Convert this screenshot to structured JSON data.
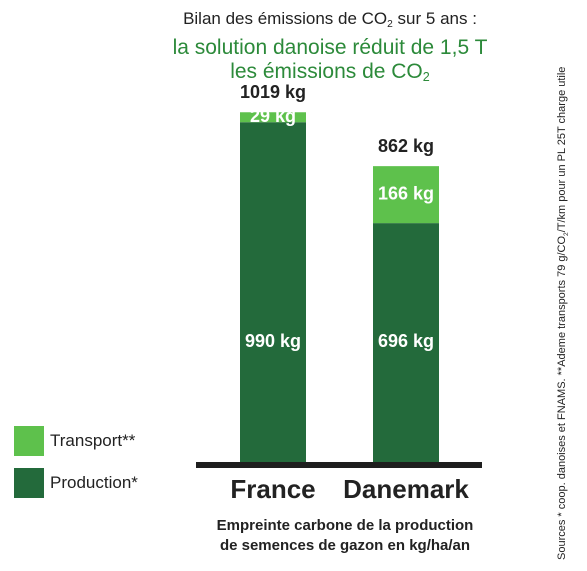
{
  "title": {
    "line1_pre": "Bilan des émissions de CO",
    "line1_sub": "2",
    "line1_post": " sur 5 ans :",
    "line2": "la solution danoise réduit de 1,5 T",
    "line3_pre": "les émissions de CO",
    "line3_sub": "2"
  },
  "legend": {
    "transport": "Transport**",
    "production": "Production*"
  },
  "caption": {
    "line1": "Empreinte carbone de la production",
    "line2": "de semences de gazon en kg/ha/an"
  },
  "sources": {
    "pre": "Sources  * coop. danoises et FNAMS.  **Ademe transports 79 g/CO",
    "sub": "2",
    "post": "/T/km pour un PL 25T charge utile"
  },
  "colors": {
    "transport": "#5ec14c",
    "production": "#236a3b",
    "accent_text": "#2c8a3a",
    "baseline": "#1e1e1e"
  },
  "chart_data": {
    "type": "bar",
    "stacked": true,
    "categories": [
      "France",
      "Danemark"
    ],
    "series": [
      {
        "name": "Production*",
        "values": [
          990,
          696
        ],
        "labels": [
          "990 kg",
          "696 kg"
        ]
      },
      {
        "name": "Transport**",
        "values": [
          29,
          166
        ],
        "labels": [
          "29 kg",
          "166 kg"
        ]
      }
    ],
    "totals": [
      1019,
      862
    ],
    "total_labels": [
      "1019 kg",
      "862 kg"
    ],
    "ylim": [
      0,
      1180
    ],
    "legend_position": "left",
    "grid": false
  }
}
